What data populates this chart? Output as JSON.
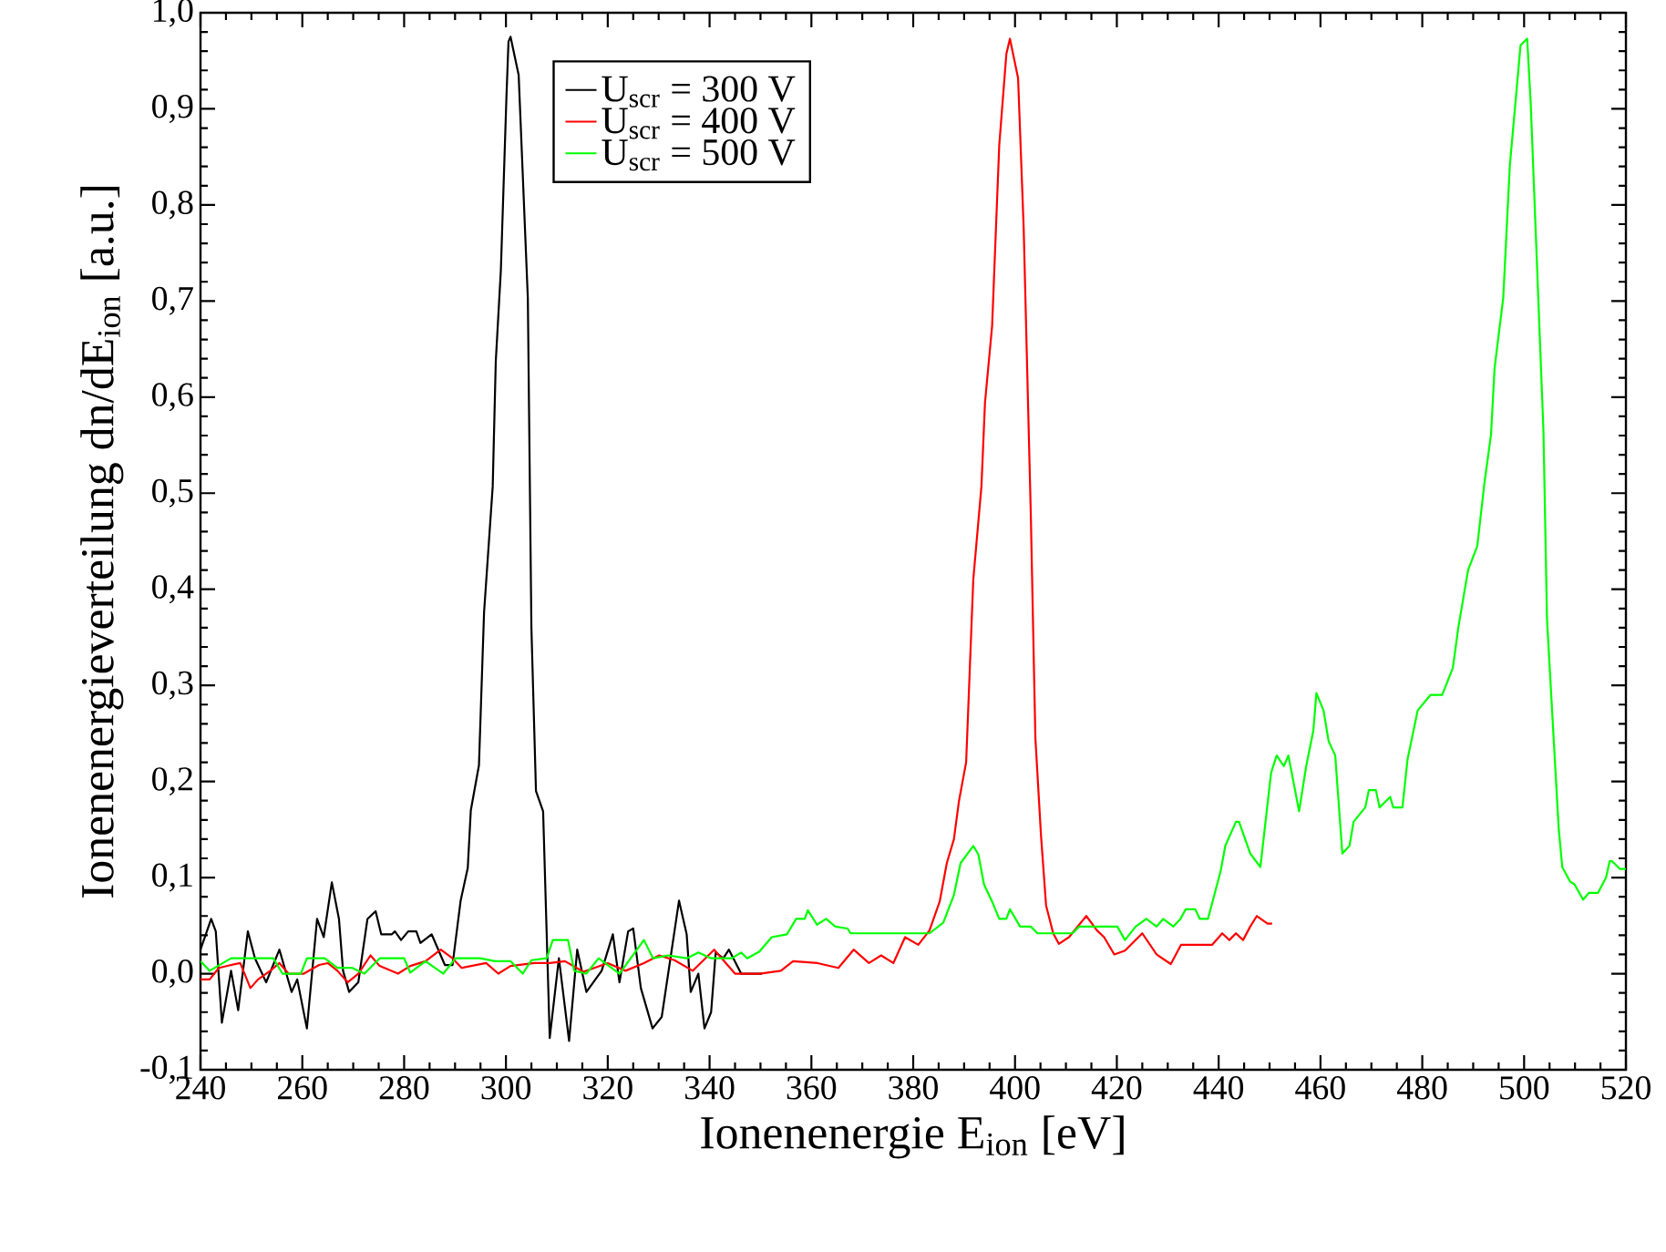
{
  "chart_data": {
    "type": "line",
    "xlabel": "Ionenenergie E$_{ion}$ [eV]",
    "ylabel": "Ionenenergieverteilung dn/dE$_{ion}$ [a.u.]",
    "xlim": [
      240,
      520
    ],
    "ylim": [
      -0.1,
      1.0
    ],
    "xticks": [
      240,
      260,
      280,
      300,
      320,
      340,
      360,
      380,
      400,
      420,
      440,
      460,
      480,
      500,
      520
    ],
    "yticks": [
      {
        "value": -0.1,
        "label": "-0,1"
      },
      {
        "value": 0.0,
        "label": "0,0"
      },
      {
        "value": 0.1,
        "label": "0,1"
      },
      {
        "value": 0.2,
        "label": "0,2"
      },
      {
        "value": 0.3,
        "label": "0,3"
      },
      {
        "value": 0.4,
        "label": "0,4"
      },
      {
        "value": 0.5,
        "label": "0,5"
      },
      {
        "value": 0.6,
        "label": "0,6"
      },
      {
        "value": 0.7,
        "label": "0,7"
      },
      {
        "value": 0.8,
        "label": "0,8"
      },
      {
        "value": 0.9,
        "label": "0,9"
      },
      {
        "value": 1.0,
        "label": "1,0"
      }
    ],
    "legend": "top",
    "line_style": "solid",
    "series": [
      {
        "name": "U$_{scr}$ = 300 V",
        "color": "#000000",
        "x": [
          240,
          242.1,
          243,
          244.2,
          246,
          247.4,
          249.3,
          250.7,
          252.9,
          255.5,
          257.9,
          259,
          260.9,
          262.9,
          264.2,
          265.8,
          267.2,
          268,
          269.2,
          271,
          272.8,
          274.4,
          275.5,
          277.6,
          278.2,
          279.4,
          280.8,
          282.4,
          283.2,
          285.4,
          288,
          289.5,
          291.1,
          292.5,
          293.1,
          294.7,
          295.7,
          297.4,
          298,
          299,
          300.1,
          300.5,
          300.9,
          302.5,
          304.3,
          305,
          305.9,
          307.3,
          308.6,
          310.4,
          312.4,
          314,
          315.8,
          318.8,
          321,
          322.3,
          324,
          325,
          326.5,
          328.8,
          330.6,
          334,
          335.5,
          336.3,
          337.8,
          339,
          340.3,
          341.2,
          342.7,
          343.8,
          346.2,
          350.3
        ],
        "values": [
          0.025,
          0.057,
          0.044,
          -0.051,
          0.003,
          -0.038,
          0.044,
          0.016,
          -0.009,
          0.025,
          -0.019,
          -0.006,
          -0.057,
          0.057,
          0.038,
          0.095,
          0.057,
          0.003,
          -0.019,
          -0.009,
          0.057,
          0.065,
          0.041,
          0.041,
          0.044,
          0.035,
          0.044,
          0.044,
          0.032,
          0.041,
          0.009,
          0.009,
          0.076,
          0.11,
          0.17,
          0.217,
          0.376,
          0.507,
          0.637,
          0.732,
          0.913,
          0.97,
          0.975,
          0.935,
          0.703,
          0.36,
          0.19,
          0.169,
          -0.067,
          0.016,
          -0.07,
          0.025,
          -0.019,
          0.003,
          0.041,
          -0.009,
          0.044,
          0.047,
          -0.015,
          -0.057,
          -0.045,
          0.076,
          0.041,
          -0.019,
          0.0,
          -0.057,
          -0.04,
          0.022,
          0.016,
          0.025,
          0.0,
          0.0
        ]
      },
      {
        "name": "U$_{scr}$ = 400 V",
        "color": "#ff0000",
        "x": [
          240,
          241.8,
          243.6,
          246,
          247.8,
          249.8,
          251.3,
          253.7,
          255.5,
          257.3,
          260.3,
          263.3,
          265,
          266.9,
          268.9,
          271,
          273.4,
          275.2,
          278.8,
          281.2,
          284.2,
          287.2,
          289.5,
          291.3,
          296.1,
          298.5,
          300.9,
          305.6,
          308.6,
          311.6,
          315.2,
          320,
          323.5,
          327.1,
          330.1,
          333.1,
          336.7,
          340.9,
          345,
          349.8,
          354,
          356.4,
          361.2,
          365.3,
          368.3,
          371.3,
          373.7,
          376.1,
          378.4,
          381,
          383.2,
          385.2,
          386.6,
          388,
          389,
          390.4,
          391.8,
          393.4,
          394.1,
          395.5,
          396.9,
          398.3,
          399,
          400.6,
          401.7,
          403.1,
          404,
          405.1,
          406.1,
          407.5,
          408.6,
          410.6,
          414,
          416.1,
          417.5,
          419.5,
          421.6,
          425,
          427.8,
          430.6,
          432.6,
          434.6,
          438.7,
          440.7,
          442.1,
          443.4,
          444.8,
          446.2,
          447.5,
          449.6,
          450.5
        ],
        "values": [
          -0.006,
          -0.006,
          0.006,
          0.009,
          0.011,
          -0.015,
          -0.006,
          0.003,
          0.011,
          0.0,
          0.0,
          0.009,
          0.011,
          0.003,
          -0.009,
          0.0,
          0.019,
          0.008,
          0.0,
          0.008,
          0.013,
          0.025,
          0.016,
          0.006,
          0.011,
          0.0,
          0.008,
          0.011,
          0.011,
          0.013,
          0.002,
          0.011,
          0.003,
          0.011,
          0.019,
          0.014,
          0.003,
          0.025,
          0.0,
          0.0,
          0.003,
          0.013,
          0.011,
          0.006,
          0.025,
          0.011,
          0.019,
          0.011,
          0.038,
          0.03,
          0.045,
          0.075,
          0.115,
          0.14,
          0.18,
          0.22,
          0.41,
          0.507,
          0.594,
          0.674,
          0.862,
          0.957,
          0.973,
          0.932,
          0.776,
          0.478,
          0.245,
          0.144,
          0.071,
          0.042,
          0.031,
          0.038,
          0.06,
          0.045,
          0.038,
          0.02,
          0.024,
          0.042,
          0.02,
          0.01,
          0.03,
          0.03,
          0.03,
          0.042,
          0.035,
          0.042,
          0.035,
          0.049,
          0.06,
          0.052,
          0.052
        ]
      },
      {
        "name": "U$_{scr}$ = 500 V",
        "color": "#00ff00",
        "x": [
          240,
          241.8,
          246,
          254.3,
          256.1,
          259.7,
          260.9,
          264.4,
          266.9,
          269.8,
          272.2,
          275.2,
          280,
          281.2,
          284.2,
          287.7,
          290.1,
          294.9,
          297.9,
          300.9,
          303.3,
          305,
          308,
          309.2,
          312.2,
          313.4,
          315.8,
          318.2,
          322.3,
          327.1,
          328.9,
          331.9,
          335.5,
          337.8,
          340.3,
          344.4,
          346.2,
          347.4,
          349.8,
          352.2,
          355.2,
          357,
          358.7,
          359.3,
          361.1,
          362.9,
          364.7,
          367.1,
          367.7,
          383.2,
          385.9,
          388,
          389.3,
          391.8,
          392.8,
          393.9,
          395.5,
          396.9,
          398.3,
          399,
          401,
          403.1,
          404.4,
          411.3,
          412.6,
          420.1,
          421.6,
          423.7,
          425.8,
          427.8,
          429.1,
          431.1,
          432.5,
          433.5,
          435.4,
          436.3,
          437.9,
          440.4,
          441.3,
          443.4,
          444,
          446.2,
          448.2,
          450.3,
          451.4,
          452.8,
          453.7,
          455.8,
          457.2,
          458.6,
          459.2,
          460.6,
          461.6,
          462.9,
          464.3,
          465.7,
          466.5,
          468.8,
          469.5,
          470.9,
          471.6,
          473.7,
          474.3,
          476.1,
          477.1,
          479.1,
          481.6,
          483.9,
          486,
          487.1,
          489,
          490.8,
          492.2,
          493.5,
          494.2,
          495.9,
          497.2,
          499.3,
          500.6,
          501.3,
          503.8,
          504.5,
          505.8,
          506.8,
          507.5,
          509,
          509.9,
          511.6,
          512.7,
          514.5,
          516.1,
          516.8,
          517.3,
          518.8,
          520
        ],
        "values": [
          0.013,
          0.003,
          0.016,
          0.016,
          0.0,
          0.0,
          0.016,
          0.016,
          0.006,
          0.006,
          0.0,
          0.016,
          0.016,
          0.001,
          0.013,
          0.0,
          0.016,
          0.016,
          0.013,
          0.013,
          0.0,
          0.014,
          0.016,
          0.035,
          0.035,
          0.003,
          0.0,
          0.016,
          0.0,
          0.035,
          0.016,
          0.019,
          0.016,
          0.022,
          0.016,
          0.016,
          0.022,
          0.016,
          0.023,
          0.038,
          0.041,
          0.057,
          0.057,
          0.066,
          0.051,
          0.057,
          0.049,
          0.047,
          0.042,
          0.042,
          0.053,
          0.082,
          0.115,
          0.133,
          0.124,
          0.093,
          0.075,
          0.057,
          0.057,
          0.067,
          0.049,
          0.049,
          0.042,
          0.042,
          0.049,
          0.049,
          0.035,
          0.049,
          0.057,
          0.049,
          0.057,
          0.049,
          0.057,
          0.067,
          0.067,
          0.057,
          0.057,
          0.107,
          0.133,
          0.158,
          0.158,
          0.125,
          0.111,
          0.209,
          0.227,
          0.216,
          0.227,
          0.169,
          0.216,
          0.253,
          0.292,
          0.274,
          0.242,
          0.227,
          0.125,
          0.133,
          0.158,
          0.173,
          0.191,
          0.191,
          0.173,
          0.184,
          0.173,
          0.173,
          0.223,
          0.274,
          0.29,
          0.29,
          0.318,
          0.361,
          0.42,
          0.445,
          0.51,
          0.561,
          0.63,
          0.703,
          0.841,
          0.966,
          0.973,
          0.906,
          0.565,
          0.369,
          0.245,
          0.151,
          0.111,
          0.096,
          0.093,
          0.077,
          0.084,
          0.084,
          0.1,
          0.117,
          0.117,
          0.109,
          0.109
        ]
      }
    ]
  }
}
